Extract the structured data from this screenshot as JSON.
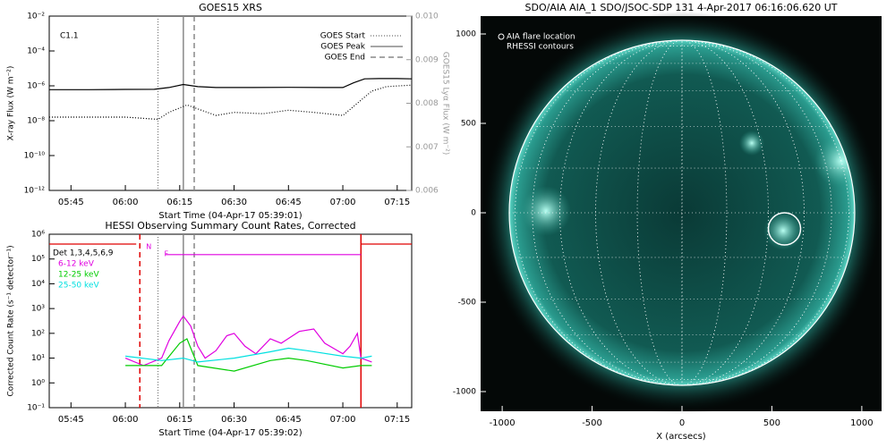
{
  "chart_data": [
    {
      "type": "line",
      "title": "GOES15 XRS",
      "xlabel": "Start Time (04-Apr-17 05:39:01)",
      "ylabel": "X-ray Flux (W m⁻²)",
      "y2label": "GOES15 Lyα Flux (W m⁻²)",
      "log_y": true,
      "xlim": [
        "05:39",
        "07:19"
      ],
      "xticks": [
        "05:45",
        "06:00",
        "06:15",
        "06:30",
        "06:45",
        "07:00",
        "07:15"
      ],
      "ylim": [
        1e-12,
        0.01
      ],
      "yticks": [
        {
          "value": 1e-12,
          "label": "10⁻¹²"
        },
        {
          "value": 1e-10,
          "label": "10⁻¹⁰"
        },
        {
          "value": 1e-08,
          "label": "10⁻⁸"
        },
        {
          "value": 1e-06,
          "label": "10⁻⁶"
        },
        {
          "value": 0.0001,
          "label": "10⁻⁴"
        },
        {
          "value": 0.01,
          "label": "10⁻²"
        }
      ],
      "y2lim": [
        0.006,
        0.01
      ],
      "y2ticks": [
        0.006,
        0.007,
        0.008,
        0.009,
        {
          "value": 0.01,
          "label": "0.010"
        }
      ],
      "annotations": [
        "C1.1"
      ],
      "series": [
        {
          "color": "#000000",
          "style": "solid",
          "x": [
            "05:39",
            "05:50",
            "06:00",
            "06:08",
            "06:12",
            "06:16",
            "06:20",
            "06:25",
            "06:35",
            "06:45",
            "06:55",
            "07:00",
            "07:03",
            "07:06",
            "07:10",
            "07:15",
            "07:19"
          ],
          "values": [
            6e-07,
            6e-07,
            6.2e-07,
            6.3e-07,
            8e-07,
            1.2e-06,
            9e-07,
            8e-07,
            8e-07,
            8.2e-07,
            8e-07,
            8e-07,
            1.5e-06,
            2.5e-06,
            2.6e-06,
            2.6e-06,
            2.5e-06
          ]
        },
        {
          "color": "#000000",
          "style": "dotted",
          "x": [
            "05:39",
            "05:50",
            "06:00",
            "06:09",
            "06:12",
            "06:17",
            "06:21",
            "06:25",
            "06:30",
            "06:38",
            "06:45",
            "06:52",
            "07:00",
            "07:04",
            "07:08",
            "07:12",
            "07:19"
          ],
          "values": [
            1.6e-08,
            1.6e-08,
            1.6e-08,
            1.2e-08,
            3e-08,
            8e-08,
            4e-08,
            2e-08,
            3e-08,
            2.5e-08,
            4e-08,
            3e-08,
            2e-08,
            1e-07,
            5e-07,
            9e-07,
            1.1e-06
          ]
        }
      ],
      "markers": [
        {
          "name": "GOES Start",
          "x": "06:09",
          "style": "dotted"
        },
        {
          "name": "GOES Peak",
          "x": "06:16",
          "style": "solid"
        },
        {
          "name": "GOES End",
          "x": "06:19",
          "style": "dashed"
        }
      ]
    },
    {
      "type": "line",
      "title": "HESSI Observing Summary Count Rates, Corrected",
      "xlabel": "Start Time (04-Apr-17 05:39:02)",
      "ylabel": "Corrected Count Rate (s⁻¹ detector⁻¹)",
      "log_y": true,
      "xlim": [
        "05:39",
        "07:19"
      ],
      "xticks": [
        "05:45",
        "06:00",
        "06:15",
        "06:30",
        "06:45",
        "07:00",
        "07:15"
      ],
      "ylim": [
        0.1,
        1000000
      ],
      "yticks": [
        {
          "value": 0.1,
          "label": "10⁻¹"
        },
        {
          "value": 1,
          "label": "10⁰"
        },
        {
          "value": 10,
          "label": "10¹"
        },
        {
          "value": 100,
          "label": "10²"
        },
        {
          "value": 1000,
          "label": "10³"
        },
        {
          "value": 10000,
          "label": "10⁴"
        },
        {
          "value": 100000,
          "label": "10⁵"
        },
        {
          "value": 1000000,
          "label": "10⁶"
        }
      ],
      "legend_title": "Det 1,3,4,5,6,9",
      "annotations": [
        {
          "text": "N",
          "x": "06:05"
        },
        {
          "text": "F",
          "x": "06:10"
        }
      ],
      "series": [
        {
          "name": "6-12 keV",
          "color": "#e000e0",
          "style": "solid",
          "x": [
            "06:00",
            "06:05",
            "06:10",
            "06:12",
            "06:15",
            "06:16",
            "06:18",
            "06:20",
            "06:22",
            "06:25",
            "06:28",
            "06:30",
            "06:33",
            "06:36",
            "06:40",
            "06:43",
            "06:48",
            "06:52",
            "06:55",
            "07:00",
            "07:02",
            "07:04",
            "07:05",
            "07:08"
          ],
          "values": [
            10,
            5,
            10,
            50,
            300,
            500,
            200,
            30,
            10,
            20,
            80,
            100,
            30,
            15,
            60,
            40,
            120,
            150,
            40,
            15,
            30,
            100,
            10,
            7
          ]
        },
        {
          "name": "12-25 keV",
          "color": "#00cc00",
          "style": "solid",
          "x": [
            "06:00",
            "06:10",
            "06:15",
            "06:17",
            "06:20",
            "06:30",
            "06:40",
            "06:45",
            "06:50",
            "07:00",
            "07:05",
            "07:08"
          ],
          "values": [
            5,
            5,
            40,
            60,
            5,
            3,
            8,
            10,
            8,
            4,
            5,
            5
          ]
        },
        {
          "name": "25-50 keV",
          "color": "#00e0e0",
          "style": "solid",
          "x": [
            "06:00",
            "06:10",
            "06:16",
            "06:20",
            "06:30",
            "06:40",
            "06:45",
            "06:50",
            "07:00",
            "07:05",
            "07:08"
          ],
          "values": [
            12,
            8,
            10,
            7,
            10,
            18,
            25,
            20,
            12,
            10,
            12
          ]
        },
        {
          "color": "#e00000",
          "style": "solid",
          "x": [
            "05:39",
            "06:03",
            "06:04",
            "07:05",
            "07:19"
          ],
          "values": [
            400000,
            400000,
            null,
            400000,
            400000
          ]
        },
        {
          "color": "#e000e0",
          "style": "solid",
          "x": [
            "06:11",
            "07:05"
          ],
          "values": [
            150000,
            150000
          ]
        }
      ],
      "markers": [
        {
          "x": "06:04",
          "style": "dashed",
          "color": "#e00000"
        },
        {
          "x": "06:09",
          "style": "dotted",
          "color": "#888888"
        },
        {
          "x": "06:16",
          "style": "solid",
          "color": "#888888"
        },
        {
          "x": "06:19",
          "style": "dashed",
          "color": "#888888"
        },
        {
          "x": "07:05",
          "style": "solid",
          "color": "#e00000"
        }
      ]
    },
    {
      "type": "image",
      "title": "SDO/AIA AIA_1 SDO/JSOC-SDP 131   4-Apr-2017 06:16:06.620 UT",
      "xlabel": "X (arcsecs)",
      "xlim": [
        -1120,
        1110
      ],
      "xticks": [
        -1000,
        -500,
        0,
        500,
        1000
      ],
      "ylim": [
        -1110,
        1100
      ],
      "yticks": [
        -1000,
        -500,
        0,
        500,
        1000
      ],
      "annotations": [
        "AIA flare location",
        "RHESSI contours"
      ],
      "flare_location": {
        "x": 570,
        "y": -90
      }
    }
  ]
}
